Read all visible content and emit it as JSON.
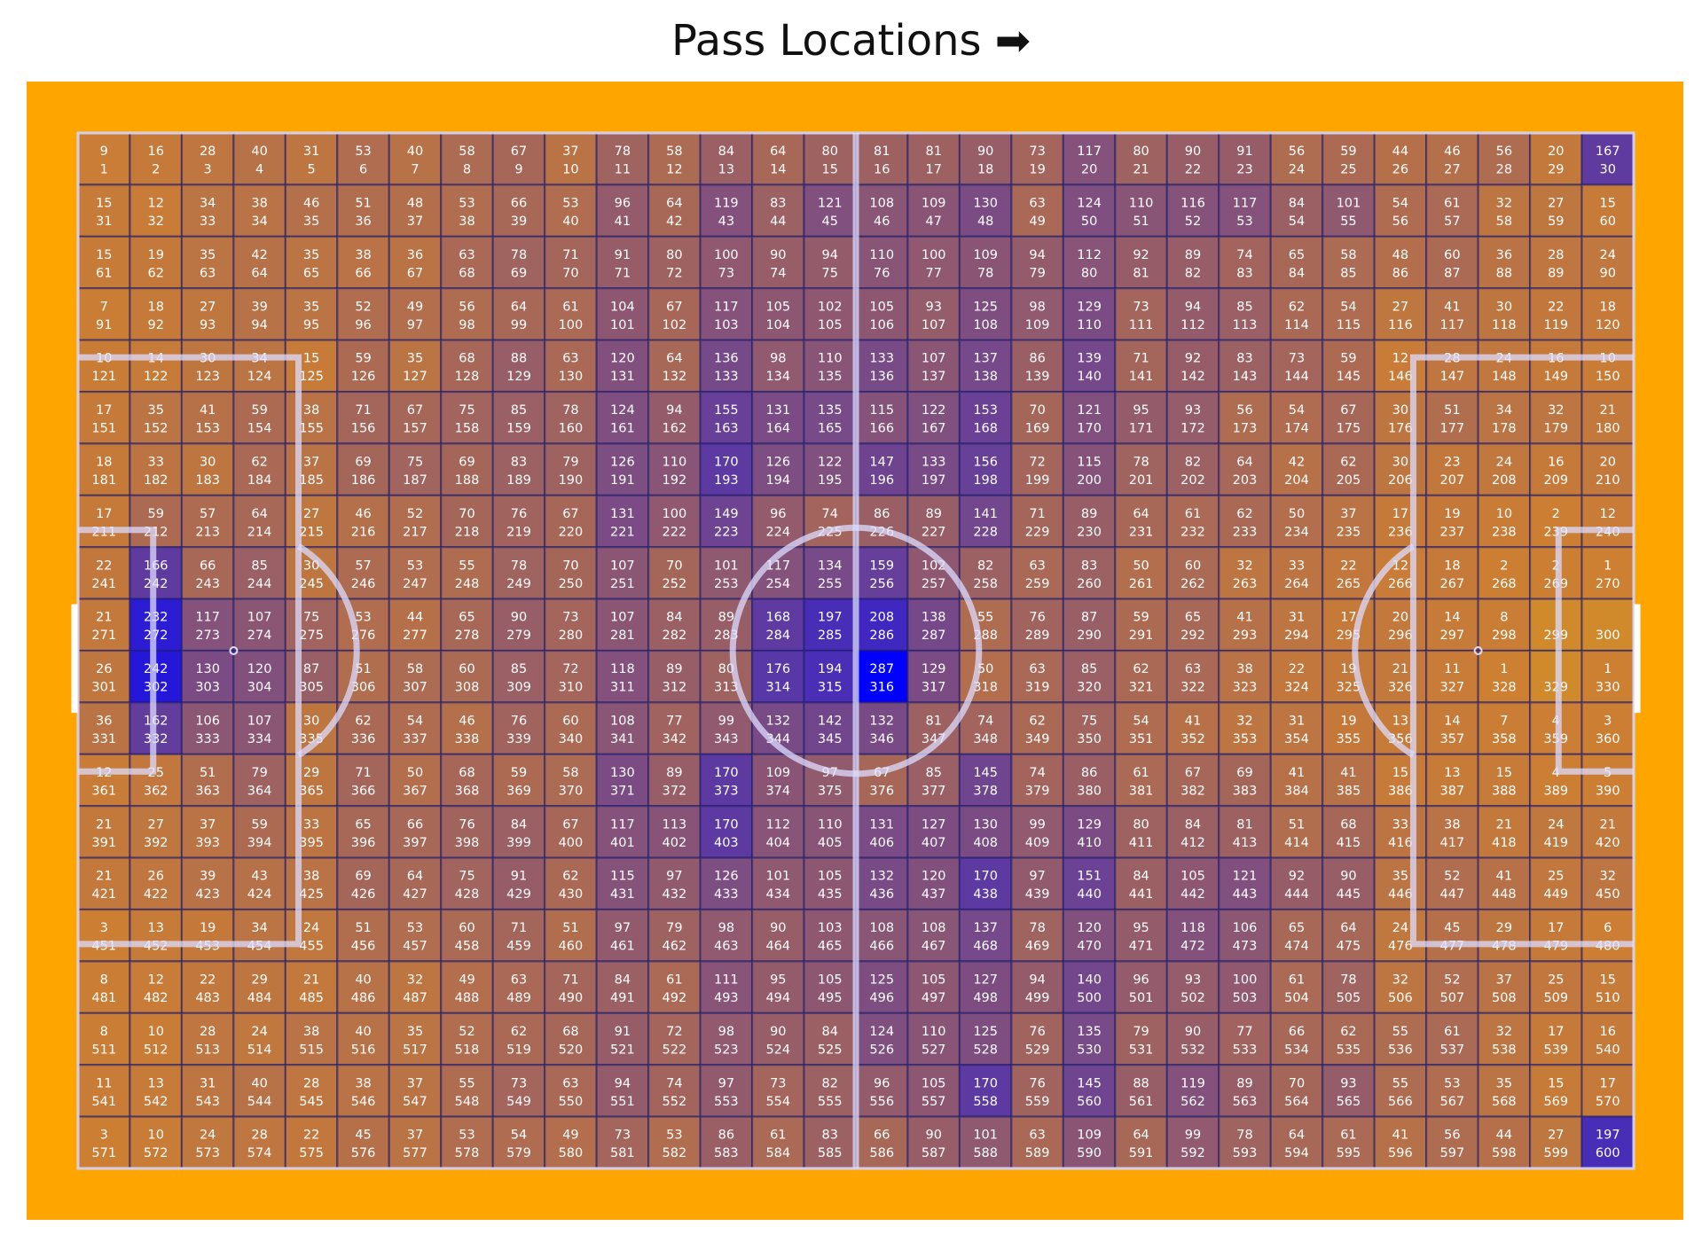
{
  "chart_data": {
    "type": "heatmap",
    "title": "Pass Locations ➡",
    "rows": 20,
    "cols": 30,
    "pitch_color": "#ffa500",
    "cell_base_color": "#cd7f32",
    "heat_color": "#0000ff",
    "line_color": "#dcdcff",
    "counts": [
      [
        9,
        16,
        28,
        40,
        31,
        53,
        40,
        58,
        67,
        37,
        78,
        58,
        84,
        64,
        80,
        81,
        81,
        90,
        73,
        117,
        80,
        90,
        91,
        56,
        59,
        44,
        46,
        56,
        20,
        167
      ],
      [
        15,
        12,
        34,
        38,
        46,
        51,
        48,
        53,
        66,
        53,
        96,
        64,
        119,
        83,
        121,
        108,
        109,
        130,
        63,
        124,
        110,
        116,
        117,
        84,
        101,
        54,
        61,
        32,
        27,
        15
      ],
      [
        15,
        19,
        35,
        42,
        35,
        38,
        36,
        63,
        78,
        71,
        91,
        80,
        100,
        90,
        94,
        110,
        100,
        109,
        94,
        112,
        92,
        89,
        74,
        65,
        58,
        48,
        60,
        36,
        28,
        24
      ],
      [
        7,
        18,
        27,
        39,
        35,
        52,
        49,
        56,
        64,
        61,
        104,
        67,
        117,
        105,
        102,
        105,
        93,
        125,
        98,
        129,
        73,
        94,
        85,
        62,
        54,
        27,
        41,
        30,
        22,
        18
      ],
      [
        10,
        14,
        30,
        34,
        15,
        59,
        35,
        68,
        88,
        63,
        120,
        64,
        136,
        98,
        110,
        133,
        107,
        137,
        86,
        139,
        71,
        92,
        83,
        73,
        59,
        12,
        28,
        24,
        16,
        10
      ],
      [
        17,
        35,
        41,
        59,
        38,
        71,
        67,
        75,
        85,
        78,
        124,
        94,
        155,
        131,
        135,
        115,
        122,
        153,
        70,
        121,
        95,
        93,
        56,
        54,
        67,
        30,
        51,
        34,
        32,
        21
      ],
      [
        18,
        33,
        30,
        62,
        37,
        69,
        75,
        69,
        83,
        79,
        126,
        110,
        170,
        126,
        122,
        147,
        133,
        156,
        72,
        115,
        78,
        82,
        64,
        42,
        62,
        30,
        23,
        24,
        16,
        20
      ],
      [
        17,
        59,
        57,
        64,
        27,
        46,
        52,
        70,
        76,
        67,
        131,
        100,
        149,
        96,
        74,
        86,
        89,
        141,
        71,
        89,
        64,
        61,
        62,
        50,
        37,
        17,
        19,
        10,
        2,
        12
      ],
      [
        22,
        166,
        66,
        85,
        30,
        57,
        53,
        55,
        78,
        70,
        107,
        70,
        101,
        117,
        134,
        159,
        102,
        82,
        63,
        83,
        50,
        60,
        32,
        33,
        22,
        12,
        18,
        2,
        2,
        1
      ],
      [
        21,
        232,
        117,
        107,
        75,
        53,
        44,
        65,
        90,
        73,
        107,
        84,
        89,
        168,
        197,
        208,
        138,
        55,
        76,
        87,
        59,
        65,
        41,
        31,
        17,
        20,
        14,
        8,
        null,
        null
      ],
      [
        26,
        242,
        130,
        120,
        87,
        51,
        58,
        60,
        85,
        72,
        118,
        89,
        80,
        176,
        194,
        287,
        129,
        50,
        63,
        85,
        62,
        63,
        38,
        22,
        19,
        21,
        11,
        1,
        null,
        1
      ],
      [
        36,
        162,
        106,
        107,
        30,
        62,
        54,
        46,
        76,
        60,
        108,
        77,
        99,
        132,
        142,
        132,
        81,
        74,
        62,
        75,
        54,
        41,
        32,
        31,
        19,
        13,
        14,
        7,
        4,
        3
      ],
      [
        12,
        25,
        51,
        79,
        29,
        71,
        50,
        68,
        59,
        58,
        130,
        89,
        170,
        109,
        97,
        67,
        85,
        145,
        74,
        86,
        61,
        67,
        69,
        41,
        41,
        15,
        13,
        15,
        4,
        5
      ],
      [
        21,
        27,
        37,
        59,
        33,
        65,
        66,
        76,
        84,
        67,
        117,
        113,
        170,
        112,
        110,
        131,
        127,
        130,
        99,
        129,
        80,
        84,
        81,
        51,
        68,
        33,
        38,
        21,
        24,
        21
      ],
      [
        21,
        26,
        39,
        43,
        38,
        69,
        64,
        75,
        91,
        62,
        115,
        97,
        126,
        101,
        105,
        132,
        120,
        170,
        97,
        151,
        84,
        105,
        121,
        92,
        90,
        35,
        52,
        41,
        25,
        32
      ],
      [
        3,
        13,
        19,
        34,
        24,
        51,
        53,
        60,
        71,
        51,
        97,
        79,
        98,
        90,
        103,
        108,
        108,
        137,
        78,
        120,
        95,
        118,
        106,
        65,
        64,
        24,
        45,
        29,
        17,
        6
      ],
      [
        8,
        12,
        22,
        29,
        21,
        40,
        32,
        49,
        63,
        71,
        84,
        61,
        111,
        95,
        105,
        125,
        105,
        127,
        94,
        140,
        96,
        93,
        100,
        61,
        78,
        32,
        52,
        37,
        25,
        15
      ],
      [
        8,
        10,
        28,
        24,
        38,
        40,
        35,
        52,
        62,
        68,
        91,
        72,
        98,
        90,
        84,
        124,
        110,
        125,
        76,
        135,
        79,
        90,
        77,
        66,
        62,
        55,
        61,
        32,
        17,
        16
      ],
      [
        11,
        13,
        31,
        40,
        28,
        38,
        37,
        55,
        73,
        63,
        94,
        74,
        97,
        73,
        82,
        96,
        105,
        170,
        76,
        145,
        88,
        119,
        89,
        70,
        93,
        55,
        53,
        35,
        15,
        17
      ],
      [
        3,
        10,
        24,
        28,
        22,
        45,
        37,
        53,
        54,
        49,
        73,
        53,
        86,
        61,
        83,
        66,
        90,
        101,
        63,
        109,
        64,
        99,
        78,
        64,
        61,
        41,
        56,
        44,
        27,
        197
      ]
    ]
  }
}
